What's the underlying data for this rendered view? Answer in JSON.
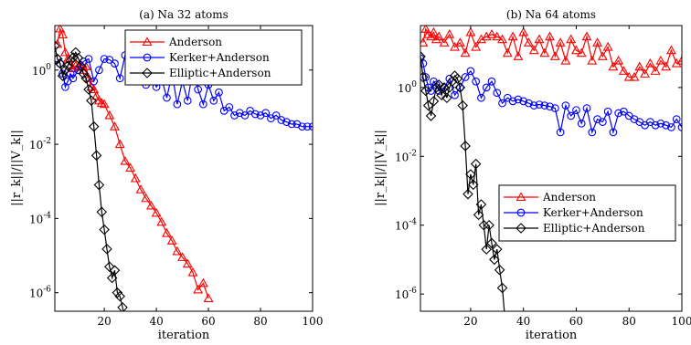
{
  "chart_data": [
    {
      "type": "line",
      "title": "(a) Na 32 atoms",
      "xlabel": "iteration",
      "ylabel": "||r_k||/||V_k||",
      "xlim": [
        1,
        100
      ],
      "ylim_log10": [
        -6.5,
        1.2
      ],
      "y_scale": "log",
      "xticks": [
        20,
        40,
        60,
        80,
        100
      ],
      "yticks": [
        {
          "base": "10",
          "exp": "0"
        },
        {
          "base": "10",
          "exp": "-2"
        },
        {
          "base": "10",
          "exp": "-4"
        },
        {
          "base": "10",
          "exp": "-6"
        }
      ],
      "legend_position": "top-right",
      "series": [
        {
          "name": "Anderson",
          "color": "#ff0000",
          "marker": "triangle",
          "x": [
            2,
            3,
            4,
            5,
            6,
            7,
            8,
            9,
            10,
            11,
            12,
            13,
            14,
            15,
            16,
            17,
            18,
            19,
            20,
            22,
            24,
            26,
            28,
            30,
            32,
            34,
            36,
            38,
            40,
            42,
            44,
            46,
            48,
            50,
            52,
            54,
            56,
            58,
            60
          ],
          "y": [
            5.0,
            13.0,
            9.0,
            3.0,
            2.0,
            1.4,
            1.1,
            1.3,
            1.2,
            1.25,
            1.0,
            1.25,
            0.6,
            0.35,
            0.3,
            0.2,
            0.15,
            0.13,
            0.12,
            0.06,
            0.03,
            0.01,
            0.0035,
            0.0023,
            0.0012,
            0.0006,
            0.00035,
            0.00022,
            0.00014,
            8e-05,
            4e-05,
            2.5e-05,
            1.3e-05,
            9e-06,
            6e-06,
            3.5e-06,
            1.2e-06,
            1.8e-06,
            7e-07
          ]
        },
        {
          "name": "Kerker+Anderson",
          "color": "#0000ff",
          "marker": "circle",
          "x": [
            2,
            3,
            4,
            5,
            6,
            7,
            8,
            10,
            12,
            14,
            16,
            18,
            20,
            22,
            24,
            26,
            28,
            30,
            32,
            34,
            36,
            38,
            40,
            42,
            44,
            46,
            48,
            50,
            52,
            54,
            56,
            58,
            60,
            62,
            64,
            66,
            68,
            70,
            72,
            74,
            76,
            78,
            80,
            82,
            84,
            86,
            88,
            90,
            92,
            94,
            96,
            98,
            100
          ],
          "y": [
            2.0,
            1.5,
            0.8,
            0.35,
            0.5,
            0.8,
            0.6,
            1.0,
            1.7,
            2.0,
            0.5,
            1.0,
            2.0,
            1.9,
            1.5,
            0.6,
            2.5,
            1.0,
            1.6,
            1.8,
            0.4,
            0.7,
            0.35,
            0.6,
            0.18,
            0.8,
            0.12,
            0.5,
            0.15,
            1.0,
            0.3,
            0.12,
            0.4,
            0.15,
            0.25,
            0.08,
            0.1,
            0.06,
            0.07,
            0.06,
            0.08,
            0.065,
            0.06,
            0.07,
            0.05,
            0.06,
            0.045,
            0.04,
            0.035,
            0.035,
            0.03,
            0.03,
            0.03
          ]
        },
        {
          "name": "Elliptic+Anderson",
          "color": "#000000",
          "marker": "diamond",
          "x": [
            1,
            2,
            3,
            4,
            5,
            6,
            7,
            8,
            9,
            10,
            11,
            12,
            13,
            14,
            15,
            16,
            17,
            18,
            19,
            20,
            21,
            22,
            23,
            24,
            25,
            26,
            27,
            28
          ],
          "y": [
            4.5,
            2.0,
            1.5,
            0.7,
            1.0,
            1.3,
            1.8,
            2.2,
            3.0,
            2.1,
            1.3,
            0.8,
            0.6,
            0.3,
            0.15,
            0.03,
            0.005,
            0.0008,
            0.00015,
            5e-05,
            1.5e-05,
            5e-06,
            2.5e-06,
            4e-06,
            1e-06,
            8e-07,
            4e-07,
            1.5e-07
          ]
        }
      ]
    },
    {
      "type": "line",
      "title": "(b) Na 64 atoms",
      "xlabel": "iteration",
      "ylabel": "||r_k||/||V_k||",
      "xlim": [
        1,
        100
      ],
      "ylim_log10": [
        -6.5,
        1.8
      ],
      "y_scale": "log",
      "xticks": [
        20,
        40,
        60,
        80,
        100
      ],
      "yticks": [
        {
          "base": "10",
          "exp": "0"
        },
        {
          "base": "10",
          "exp": "-2"
        },
        {
          "base": "10",
          "exp": "-4"
        },
        {
          "base": "10",
          "exp": "-6"
        }
      ],
      "legend_position": "center-right",
      "series": [
        {
          "name": "Anderson",
          "color": "#ff0000",
          "marker": "triangle",
          "x": [
            2,
            3,
            4,
            5,
            6,
            7,
            8,
            10,
            12,
            14,
            16,
            18,
            20,
            22,
            24,
            26,
            28,
            30,
            32,
            34,
            36,
            38,
            40,
            42,
            44,
            46,
            48,
            50,
            52,
            54,
            56,
            58,
            60,
            62,
            64,
            66,
            68,
            70,
            72,
            74,
            76,
            78,
            80,
            82,
            84,
            86,
            88,
            90,
            92,
            94,
            96,
            98,
            100
          ],
          "y": [
            20,
            50,
            35,
            30,
            40,
            25,
            30,
            20,
            35,
            15,
            20,
            10,
            40,
            15,
            25,
            30,
            35,
            30,
            25,
            10,
            30,
            8,
            40,
            20,
            12,
            25,
            10,
            30,
            8,
            20,
            6,
            25,
            12,
            10,
            30,
            6,
            20,
            8,
            15,
            4,
            6,
            3,
            2,
            2,
            4,
            2.5,
            5,
            3,
            6,
            4,
            12,
            5,
            6
          ]
        },
        {
          "name": "Kerker+Anderson",
          "color": "#0000ff",
          "marker": "circle",
          "x": [
            1,
            2,
            3,
            4,
            5,
            6,
            7,
            8,
            10,
            12,
            14,
            16,
            18,
            20,
            22,
            24,
            26,
            28,
            30,
            32,
            34,
            36,
            38,
            40,
            42,
            44,
            46,
            48,
            50,
            52,
            54,
            56,
            58,
            60,
            62,
            64,
            66,
            68,
            70,
            72,
            74,
            76,
            78,
            80,
            82,
            84,
            86,
            88,
            90,
            92,
            94,
            96,
            98,
            100
          ],
          "y": [
            7,
            5,
            2,
            1,
            0.8,
            1.5,
            1.2,
            0.8,
            1.0,
            1.8,
            0.6,
            1.0,
            2.0,
            3.0,
            1.5,
            0.5,
            1.0,
            1.5,
            0.7,
            0.35,
            0.5,
            0.4,
            0.45,
            0.4,
            0.35,
            0.3,
            0.32,
            0.3,
            0.28,
            0.25,
            0.05,
            0.3,
            0.15,
            0.22,
            0.09,
            0.25,
            0.05,
            0.12,
            0.1,
            0.2,
            0.05,
            0.18,
            0.2,
            0.15,
            0.12,
            0.1,
            0.08,
            0.1,
            0.08,
            0.09,
            0.08,
            0.07,
            0.12,
            0.07
          ]
        },
        {
          "name": "Elliptic+Anderson",
          "color": "#000000",
          "marker": "diamond",
          "x": [
            1,
            2,
            3,
            4,
            5,
            6,
            7,
            8,
            9,
            10,
            11,
            12,
            13,
            14,
            15,
            16,
            17,
            18,
            19,
            20,
            21,
            22,
            23,
            24,
            25,
            26,
            27,
            28,
            29,
            30,
            31,
            32,
            33
          ],
          "y": [
            8,
            2,
            0.8,
            0.3,
            0.15,
            0.4,
            1.0,
            1.2,
            0.6,
            1.0,
            0.5,
            1.0,
            1.5,
            2.2,
            1.8,
            1.0,
            0.3,
            0.02,
            0.0008,
            0.003,
            0.0015,
            0.006,
            0.0002,
            0.0004,
            0.0001,
            2e-05,
            0.0001,
            3e-05,
            1e-05,
            2e-05,
            5e-06,
            1.5e-06,
            2e-07
          ]
        }
      ]
    }
  ]
}
